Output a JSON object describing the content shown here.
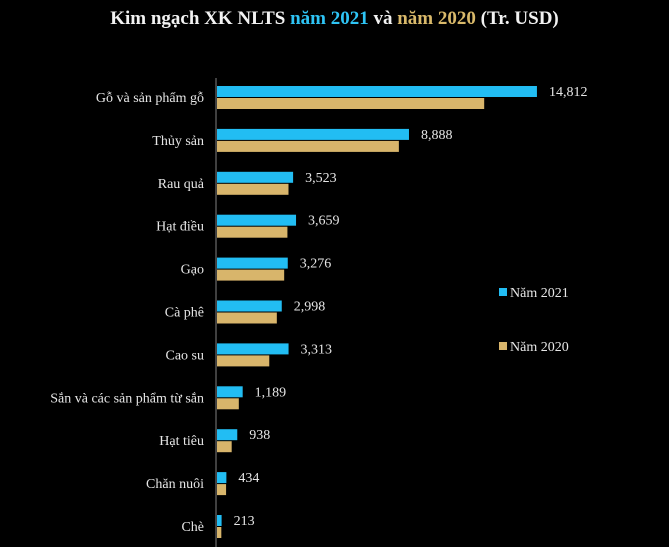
{
  "chart_data": {
    "type": "bar",
    "orientation": "horizontal",
    "title_parts": [
      "Kim ngạch XK NLTS ",
      "năm 2021",
      " và ",
      "năm 2020",
      " (Tr. USD)"
    ],
    "categories": [
      "Gỗ và sản phẩm gỗ",
      "Thủy sản",
      "Rau quả",
      "Hạt điều",
      "Gạo",
      "Cà phê",
      "Cao su",
      "Sắn và các sản phẩm từ sắn",
      "Hạt tiêu",
      "Chăn nuôi",
      "Chè"
    ],
    "series": [
      {
        "name": "Năm 2021",
        "color": "#22bdf3",
        "values": [
          14812,
          8888,
          3523,
          3659,
          3276,
          2998,
          3313,
          1189,
          938,
          434,
          213
        ],
        "labels": [
          "14,812",
          "8,888",
          "3,523",
          "3,659",
          "3,276",
          "2,998",
          "3,313",
          "1,189",
          "938",
          "434",
          "213"
        ]
      },
      {
        "name": "Năm 2020",
        "color": "#d8b56b",
        "values": [
          12370,
          8420,
          3310,
          3260,
          3110,
          2770,
          2420,
          1010,
          680,
          420,
          200
        ]
      }
    ],
    "xlim": [
      0,
      15000
    ],
    "grid": false,
    "legend_position": "right"
  }
}
